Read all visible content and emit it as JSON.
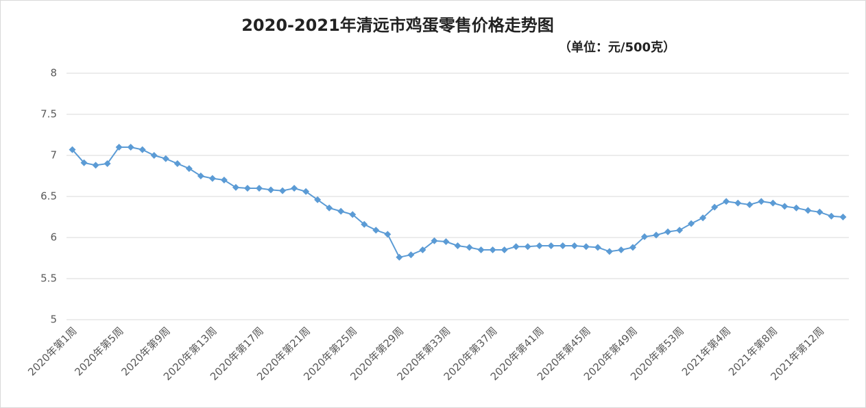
{
  "chart_data": {
    "type": "line",
    "title": "2020-2021年清远市鸡蛋零售价格走势图",
    "subtitle": "（单位：元/500克）",
    "categories": [
      "2020年第1周",
      null,
      null,
      null,
      "2020年第5周",
      null,
      null,
      null,
      "2020年第9周",
      null,
      null,
      null,
      "2020年第13周",
      null,
      null,
      null,
      "2020年第17周",
      null,
      null,
      null,
      "2020年第21周",
      null,
      null,
      null,
      "2020年第25周",
      null,
      null,
      null,
      "2020年第29周",
      null,
      null,
      null,
      "2020年第33周",
      null,
      null,
      null,
      "2020年第37周",
      null,
      null,
      null,
      "2020年第41周",
      null,
      null,
      null,
      "2020年第45周",
      null,
      null,
      null,
      "2020年第49周",
      null,
      null,
      null,
      "2020年第53周",
      null,
      null,
      null,
      "2021年第4周",
      null,
      null,
      null,
      "2021年第8周",
      null,
      null,
      null,
      "2021年第12周",
      null,
      null
    ],
    "series": [
      {
        "name": null,
        "color": "#5b9bd5",
        "values": [
          7.07,
          6.91,
          6.88,
          6.9,
          7.1,
          7.1,
          7.07,
          7.0,
          6.96,
          6.9,
          6.84,
          6.75,
          6.72,
          6.7,
          6.61,
          6.6,
          6.6,
          6.58,
          6.57,
          6.6,
          6.56,
          6.46,
          6.36,
          6.32,
          6.28,
          6.16,
          6.09,
          6.04,
          5.76,
          5.79,
          5.85,
          5.96,
          5.95,
          5.9,
          5.88,
          5.85,
          5.85,
          5.85,
          5.89,
          5.89,
          5.9,
          5.9,
          5.9,
          5.9,
          5.89,
          5.88,
          5.83,
          5.85,
          5.88,
          6.01,
          6.03,
          6.07,
          6.09,
          6.17,
          6.24,
          6.37,
          6.44,
          6.42,
          6.4,
          6.44,
          6.42,
          6.38,
          6.36,
          6.33,
          6.31,
          6.26,
          6.25
        ]
      }
    ],
    "ylim": [
      5,
      8
    ],
    "yticks": [
      5,
      5.5,
      6,
      6.5,
      7,
      7.5,
      8
    ],
    "grid": true
  }
}
